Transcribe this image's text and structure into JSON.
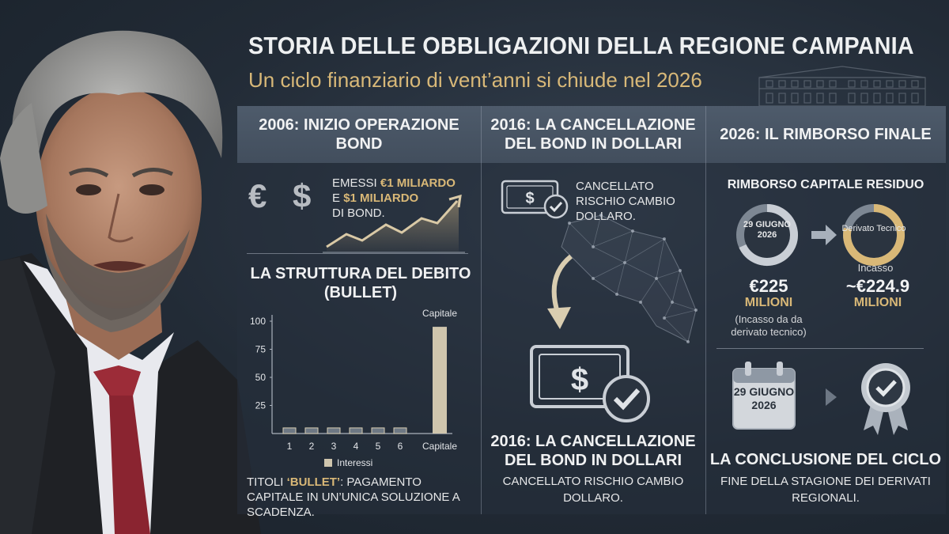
{
  "header": {
    "title": "STORIA DELLE OBBLIGAZIONI DELLA REGIONE CAMPANIA",
    "subtitle": "Un ciclo finanziario di vent’anni si chiude nel 2026"
  },
  "columns": [
    {
      "heading": "2006: INIZIO OPERAZIONE BOND"
    },
    {
      "heading": "2016: LA CANCELLAZIONE DEL BOND IN DOLLARI"
    },
    {
      "heading": "2026: IL RIMBORSO FINALE"
    }
  ],
  "col1": {
    "euro_symbol": "€",
    "dollar_symbol": "$",
    "issue_prefix": "EMESSI ",
    "issue_eur": "€1 MILIARDO",
    "issue_mid": "E ",
    "issue_usd": "$1 MILIARDO",
    "issue_suffix": "DI BOND.",
    "debt_title": "LA STRUTTURA DEL DEBITO (BULLET)",
    "bullet_label": "TITOLI ",
    "bullet_quoted": "‘BULLET’",
    "bullet_note": ": PAGAMENTO CAPITALE IN UN’UNICA SOLUZIONE A SCADENZA."
  },
  "chart_data": {
    "type": "bar",
    "categories": [
      "1",
      "2",
      "3",
      "4",
      "5",
      "6",
      "Capitale"
    ],
    "series": [
      {
        "name": "Interessi",
        "values": [
          5,
          5,
          5,
          5,
          5,
          5,
          5
        ]
      },
      {
        "name": "Capitale",
        "values": [
          0,
          0,
          0,
          0,
          0,
          0,
          95
        ]
      }
    ],
    "y_ticks": [
      "100",
      "75",
      "50",
      "25"
    ],
    "ylim": [
      0,
      100
    ],
    "bar_top_label": "Capitale",
    "legend_label": "Interessi",
    "legend_position": "bottom"
  },
  "col2": {
    "top_text": "CANCELLATO RISCHIO CAMBIO DOLLARO.",
    "title": "2016: LA CANCELLAZIONE DEL BOND IN DOLLARI",
    "text": "CANCELLATO RISCHIO CAMBIO DOLLARO.",
    "dollar_symbol": "$"
  },
  "col3": {
    "heading": "RIMBORSO CAPITALE RESIDUO",
    "ring1_label": "29 GIUGNO 2026",
    "ring2_label": "Derivato Tecnico",
    "incasso": "Incasso",
    "amount1": "€225",
    "amount1_unit": "MILIONI",
    "amount1_note": "(Incasso da da derivato tecnico)",
    "amount2": "~€224.9",
    "amount2_unit": "MILIONI",
    "calendar_date": "29 GIUGNO 2026",
    "title": "LA CONCLUSIONE DEL CICLO",
    "text": "FINE DELLA STAGIONE DEI DERIVATI REGIONALI."
  },
  "colors": {
    "accent_gold": "#d9b877",
    "header_bar": "#4a5667",
    "background": "#222b36"
  }
}
